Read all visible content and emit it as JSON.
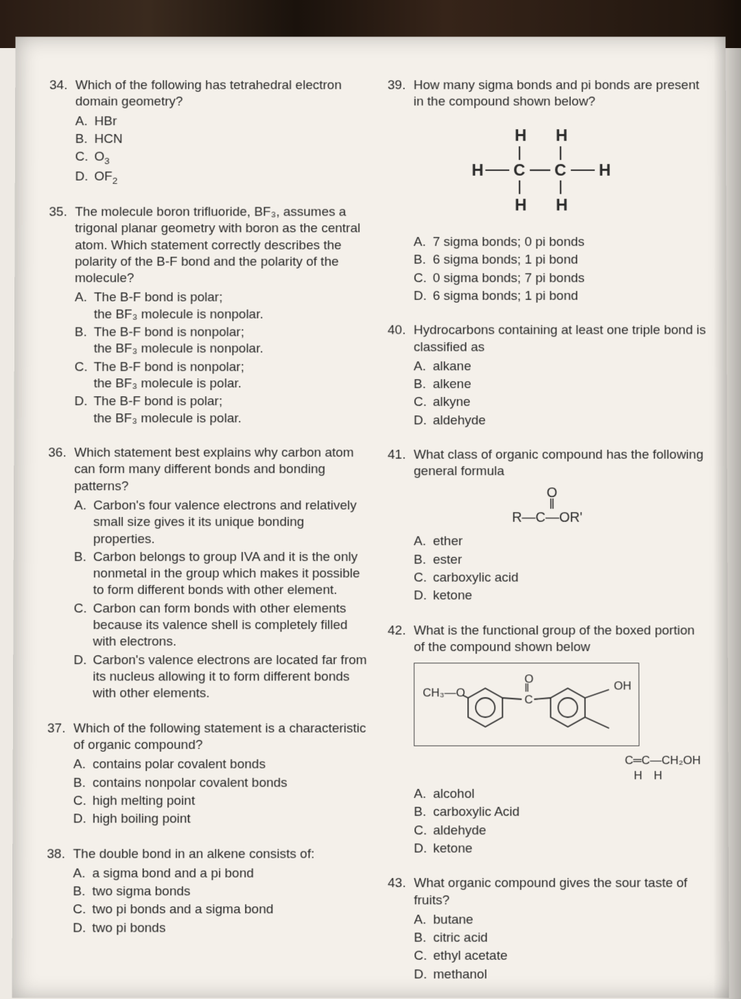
{
  "leftCol": {
    "q34": {
      "num": "34.",
      "text": "Which of the following has tetrahedral electron domain geometry?",
      "opts": [
        {
          "l": "A.",
          "t": "HBr"
        },
        {
          "l": "B.",
          "t": "HCN"
        },
        {
          "l": "C.",
          "t": "O"
        },
        {
          "l": "D.",
          "t": "OF"
        }
      ],
      "c_sub": "3",
      "d_sub": "2"
    },
    "q35": {
      "num": "35.",
      "text": "The molecule boron trifluoride, BF₃, assumes a trigonal planar geometry with boron as the central atom. Which statement correctly describes the polarity of the B-F bond and the polarity of the molecule?",
      "opts": [
        {
          "l": "A.",
          "t": "The B-F bond is polar;",
          "t2": "the BF₃ molecule is nonpolar."
        },
        {
          "l": "B.",
          "t": "The B-F bond is nonpolar;",
          "t2": "the BF₃ molecule is nonpolar."
        },
        {
          "l": "C.",
          "t": "The B-F bond is nonpolar;",
          "t2": "the BF₃ molecule is polar."
        },
        {
          "l": "D.",
          "t": "The B-F bond is polar;",
          "t2": "the BF₃ molecule is polar."
        }
      ]
    },
    "q36": {
      "num": "36.",
      "text": "Which statement best explains why carbon atom can form many different bonds and bonding patterns?",
      "opts": [
        {
          "l": "A.",
          "t": "Carbon's four valence electrons and relatively small size gives it its unique bonding properties."
        },
        {
          "l": "B.",
          "t": "Carbon belongs to group IVA and it is the only nonmetal in the group which makes it possible to form different bonds with other element."
        },
        {
          "l": "C.",
          "t": "Carbon can form bonds with other elements because its valence shell is completely filled with electrons."
        },
        {
          "l": "D.",
          "t": "Carbon's valence electrons are located far from its nucleus allowing it to form different bonds with other elements."
        }
      ]
    },
    "q37": {
      "num": "37.",
      "text": "Which of the following statement is a characteristic of organic compound?",
      "opts": [
        {
          "l": "A.",
          "t": "contains polar covalent bonds"
        },
        {
          "l": "B.",
          "t": "contains nonpolar covalent bonds"
        },
        {
          "l": "C.",
          "t": "high melting point"
        },
        {
          "l": "D.",
          "t": "high boiling point"
        }
      ]
    },
    "q38": {
      "num": "38.",
      "text": "The double bond in an alkene consists of:",
      "opts": [
        {
          "l": "A.",
          "t": "a sigma bond and a pi bond"
        },
        {
          "l": "B.",
          "t": "two sigma bonds"
        },
        {
          "l": "C.",
          "t": "two pi bonds and a sigma bond"
        },
        {
          "l": "D.",
          "t": "two pi bonds"
        }
      ]
    }
  },
  "rightCol": {
    "q39": {
      "num": "39.",
      "text": "How many sigma bonds and pi bonds are present in the compound shown below?",
      "opts": [
        {
          "l": "A.",
          "t": "7 sigma bonds; 0 pi bonds"
        },
        {
          "l": "B.",
          "t": "6 sigma bonds; 1 pi bond"
        },
        {
          "l": "C.",
          "t": "0 sigma bonds; 7 pi bonds"
        },
        {
          "l": "D.",
          "t": "6 sigma bonds; 1 pi bond"
        }
      ]
    },
    "q40": {
      "num": "40.",
      "text": "Hydrocarbons containing at least one triple bond is classified as",
      "opts": [
        {
          "l": "A.",
          "t": "alkane"
        },
        {
          "l": "B.",
          "t": "alkene"
        },
        {
          "l": "C.",
          "t": "alkyne"
        },
        {
          "l": "D.",
          "t": "aldehyde"
        }
      ]
    },
    "q41": {
      "num": "41.",
      "text": "What class of organic compound has the following general formula",
      "formula_top": "O",
      "formula_dbl": "‖",
      "formula_main": "R—C—OR'",
      "opts": [
        {
          "l": "A.",
          "t": "ether"
        },
        {
          "l": "B.",
          "t": "ester"
        },
        {
          "l": "C.",
          "t": "carboxylic acid"
        },
        {
          "l": "D.",
          "t": "ketone"
        }
      ]
    },
    "q42": {
      "num": "42.",
      "text": "What is the functional group of the boxed portion of the compound shown below",
      "ch3o": "CH₃—O",
      "oh": "OH",
      "tail": "C═C—CH₂OH",
      "tail2": "H    H",
      "opts": [
        {
          "l": "A.",
          "t": "alcohol"
        },
        {
          "l": "B.",
          "t": "carboxylic Acid"
        },
        {
          "l": "C.",
          "t": "aldehyde"
        },
        {
          "l": "D.",
          "t": "ketone"
        }
      ]
    },
    "q43": {
      "num": "43.",
      "text": "What organic compound gives the sour taste of fruits?",
      "opts": [
        {
          "l": "A.",
          "t": "butane"
        },
        {
          "l": "B.",
          "t": "citric acid"
        },
        {
          "l": "C.",
          "t": "ethyl acetate"
        },
        {
          "l": "D.",
          "t": "methanol"
        }
      ]
    }
  },
  "ethane_svg": {
    "atoms": [
      "H",
      "H",
      "H",
      "C",
      "C",
      "H",
      "H",
      "H"
    ],
    "stroke": "#2a2a2a",
    "font": "22px Arial"
  }
}
